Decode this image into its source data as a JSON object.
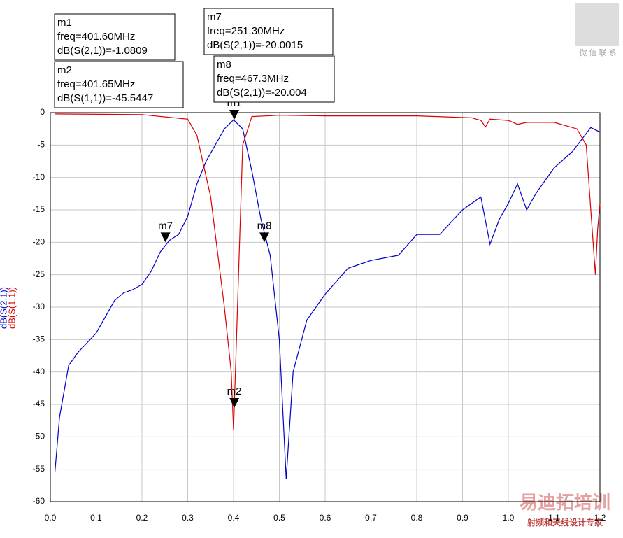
{
  "chart_data": {
    "type": "line",
    "xlim": [
      0,
      1.2
    ],
    "ylim": [
      -60,
      0
    ],
    "xticks": [
      {
        "value": 0,
        "label": "0.0"
      },
      0.1,
      0.2,
      0.3,
      0.4,
      0.5,
      0.6,
      0.7,
      0.8,
      0.9,
      {
        "value": 1,
        "label": "1.0"
      },
      1.1,
      1.2
    ],
    "yticks": [
      -60,
      -55,
      -50,
      -45,
      -40,
      -35,
      -30,
      -25,
      -20,
      -15,
      -10,
      -5,
      0
    ],
    "grid": true,
    "series": [
      {
        "name": "dB(S(2,1))",
        "color": "#0000cc",
        "x": [
          0.01,
          0.02,
          0.04,
          0.06,
          0.08,
          0.1,
          0.12,
          0.14,
          0.16,
          0.18,
          0.2,
          0.22,
          0.24,
          0.26,
          0.28,
          0.3,
          0.32,
          0.34,
          0.36,
          0.38,
          0.4,
          0.42,
          0.44,
          0.46,
          0.48,
          0.5,
          0.515,
          0.53,
          0.56,
          0.6,
          0.65,
          0.7,
          0.76,
          0.8,
          0.85,
          0.9,
          0.94,
          0.96,
          0.98,
          1.0,
          1.02,
          1.04,
          1.06,
          1.1,
          1.14,
          1.18,
          1.2
        ],
        "values": [
          -55.5,
          -47,
          -39,
          -37,
          -35.5,
          -34,
          -31.5,
          -29,
          -27.8,
          -27.3,
          -26.5,
          -24.5,
          -21.5,
          -19.7,
          -18.8,
          -16,
          -11,
          -7.5,
          -5,
          -2.5,
          -1.1,
          -2.5,
          -9,
          -16.5,
          -22,
          -35,
          -56.5,
          -40,
          -32,
          -28,
          -24,
          -22.8,
          -22,
          -18.8,
          -18.8,
          -15,
          -13,
          -20.3,
          -16.5,
          -14,
          -11,
          -15,
          -12.5,
          -8.5,
          -6,
          -2.3,
          -3
        ]
      },
      {
        "name": "dB(S(1,1))",
        "color": "#dd0000",
        "x": [
          0.01,
          0.2,
          0.3,
          0.32,
          0.35,
          0.38,
          0.395,
          0.4,
          0.405,
          0.42,
          0.44,
          0.5,
          0.6,
          0.8,
          0.92,
          0.94,
          0.95,
          0.96,
          1.0,
          1.02,
          1.04,
          1.1,
          1.15,
          1.17,
          1.18,
          1.19,
          1.195,
          1.2
        ],
        "values": [
          -0.2,
          -0.3,
          -1,
          -3.5,
          -13,
          -30,
          -40,
          -49,
          -38,
          -5,
          -0.6,
          -0.4,
          -0.5,
          -0.5,
          -0.8,
          -1.2,
          -2.2,
          -1,
          -1.2,
          -1.8,
          -1.5,
          -1.5,
          -2.5,
          -5,
          -15,
          -25,
          -18,
          -14
        ]
      }
    ],
    "markers": [
      {
        "label": "m1",
        "x": 0.4016,
        "y": -1.0809,
        "freq_text": "freq=401.60MHz",
        "value_text": "dB(S(2,1))=-1.0809"
      },
      {
        "label": "m2",
        "x": 0.40165,
        "y": -45.5447,
        "freq_text": "freq=401.65MHz",
        "value_text": "dB(S(1,1))=-45.5447"
      },
      {
        "label": "m7",
        "x": 0.2513,
        "y": -20.0015,
        "freq_text": "freq=251.30MHz",
        "value_text": "dB(S(2,1))=-20.0015"
      },
      {
        "label": "m8",
        "x": 0.4673,
        "y": -20.004,
        "freq_text": "freq=467.3MHz",
        "value_text": "dB(S(2,1))=-20.004"
      }
    ],
    "watermarks": [
      "微 信 联 系",
      "易迪拓培训",
      "射频和天线设计专家"
    ]
  }
}
